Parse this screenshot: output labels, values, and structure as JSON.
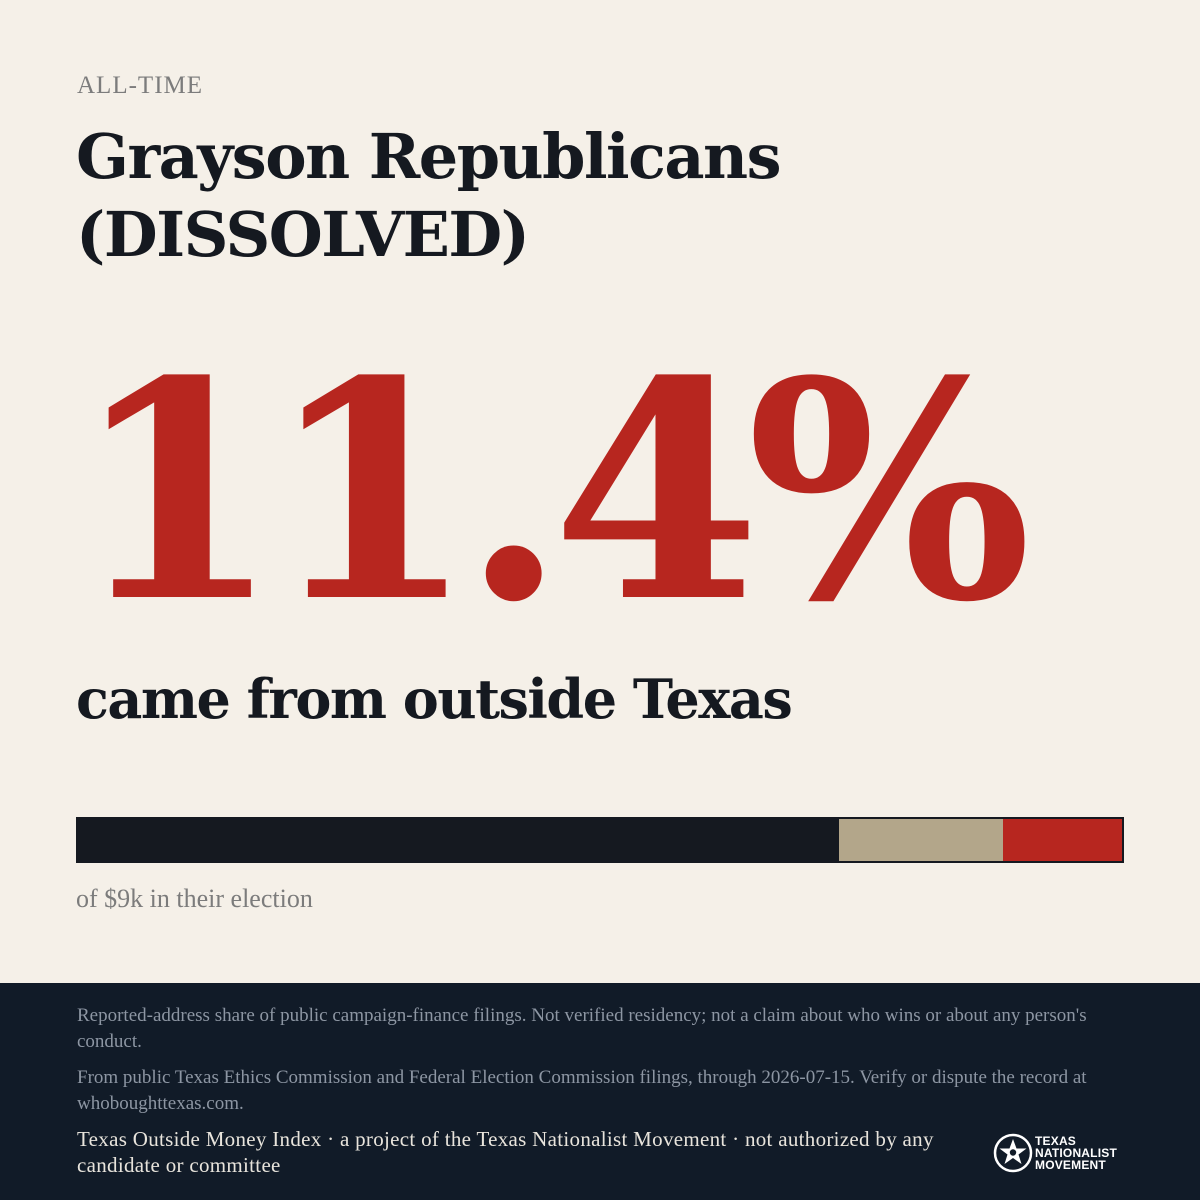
{
  "header": {
    "eyebrow": "ALL-TIME",
    "title": "Grayson Republicans (DISSOLVED)"
  },
  "stat": {
    "value": "11.4%",
    "subline": "came from outside Texas"
  },
  "share_bar": {
    "segments": [
      {
        "fraction": 0.728,
        "color": "#151920"
      },
      {
        "fraction": 0.157,
        "color": "#b3a68a"
      },
      {
        "fraction": 0.114,
        "color": "#b7261f"
      }
    ],
    "caption": "of $9k in their election"
  },
  "footer": {
    "note_1": "Reported-address share of public campaign-finance filings. Not verified residency; not a claim about who wins or about any person's conduct.",
    "note_2": "From public Texas Ethics Commission and Federal Election Commission filings, through 2026-07-15. Verify or dispute the record at whoboughttexas.com.",
    "credit": "Texas Outside Money Index · a project of the Texas Nationalist Movement · not authorized by any candidate or committee",
    "logo": {
      "icon": "star-seal-icon",
      "line_1": "TEXAS",
      "line_2": "NATIONALIST",
      "line_3": "MOVEMENT"
    }
  },
  "colors": {
    "background": "#f5f0e8",
    "accent": "#b7261f",
    "ink": "#151920",
    "footer": "#111b28"
  }
}
